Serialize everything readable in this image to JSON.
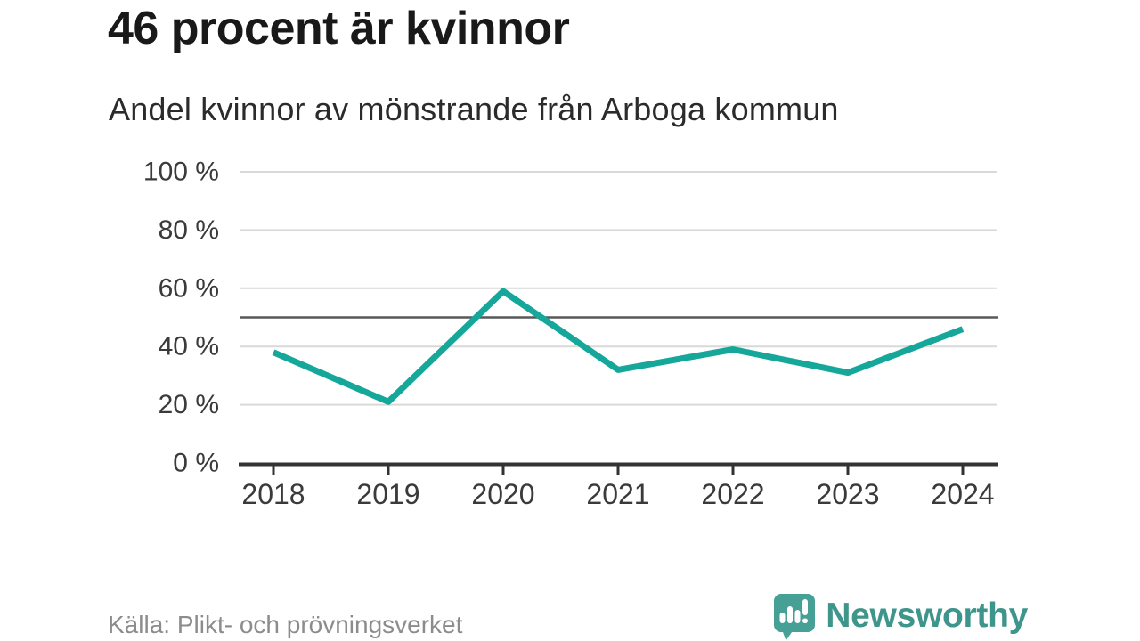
{
  "header": {
    "title": "46 procent är kvinnor",
    "subtitle": "Andel kvinnor av mönstrande från Arboga kommun"
  },
  "chart_data": {
    "type": "line",
    "title": "46 procent är kvinnor",
    "subtitle": "Andel kvinnor av mönstrande från Arboga kommun",
    "x": [
      "2018",
      "2019",
      "2020",
      "2021",
      "2022",
      "2023",
      "2024"
    ],
    "series": [
      {
        "name": "Andel kvinnor av mönstrande från Arboga kommun",
        "values": [
          38,
          21,
          59,
          32,
          39,
          31,
          46
        ]
      }
    ],
    "unit": "%",
    "ylim": [
      0,
      100
    ],
    "yticks": [
      {
        "value": 0,
        "label": "0 %"
      },
      {
        "value": 20,
        "label": "20 %"
      },
      {
        "value": 40,
        "label": "40 %"
      },
      {
        "value": 60,
        "label": "60 %"
      },
      {
        "value": 80,
        "label": "80 %"
      },
      {
        "value": 100,
        "label": "100 %"
      }
    ],
    "reference_line": {
      "value": 50
    },
    "grid": true,
    "legend": "none",
    "colors": {
      "line": "#14a79a",
      "reference_line": "#595959",
      "gridline": "#d9d9d9",
      "axis": "#333333",
      "tick_label": "#3a3a3a"
    }
  },
  "footer": {
    "source": "Källa: Plikt- och prövningsverket",
    "brand": "Newsworthy",
    "brand_color": "#3e958b",
    "logo_bubble_color": "#46a095"
  }
}
